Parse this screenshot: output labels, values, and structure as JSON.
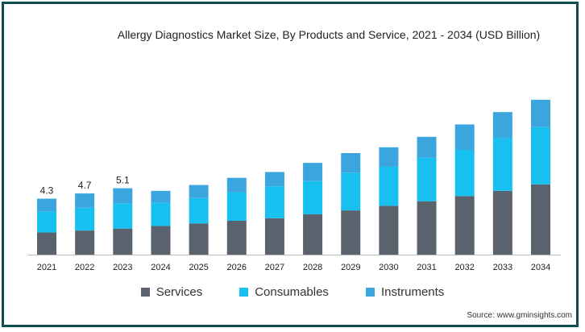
{
  "chart_data": {
    "type": "bar",
    "stacked": true,
    "title": "Allergy Diagnostics Market Size, By Products and Service, 2021 - 2034 (USD Billion)",
    "categories": [
      "2021",
      "2022",
      "2023",
      "2024",
      "2025",
      "2026",
      "2027",
      "2028",
      "2029",
      "2030",
      "2031",
      "2032",
      "2033",
      "2034"
    ],
    "series": [
      {
        "name": "Services",
        "color": "#5a626e",
        "values": [
          1.7,
          1.85,
          2.0,
          2.2,
          2.4,
          2.6,
          2.8,
          3.1,
          3.4,
          3.75,
          4.1,
          4.5,
          4.9,
          5.4
        ]
      },
      {
        "name": "Consumables",
        "color": "#18c0f0",
        "values": [
          1.6,
          1.75,
          1.95,
          1.8,
          1.95,
          2.2,
          2.45,
          2.55,
          2.9,
          3.0,
          3.35,
          3.55,
          4.05,
          4.4
        ]
      },
      {
        "name": "Instruments",
        "color": "#3aa6dd",
        "values": [
          1.0,
          1.1,
          1.15,
          0.9,
          1.0,
          1.1,
          1.1,
          1.4,
          1.5,
          1.5,
          1.6,
          1.95,
          2.0,
          2.1
        ]
      }
    ],
    "data_labels": [
      "4.3",
      "4.7",
      "5.1"
    ],
    "ylim": [
      0,
      13
    ],
    "legend_position": "bottom",
    "grid": false
  },
  "source_text": "Source: www.gminsights.com"
}
